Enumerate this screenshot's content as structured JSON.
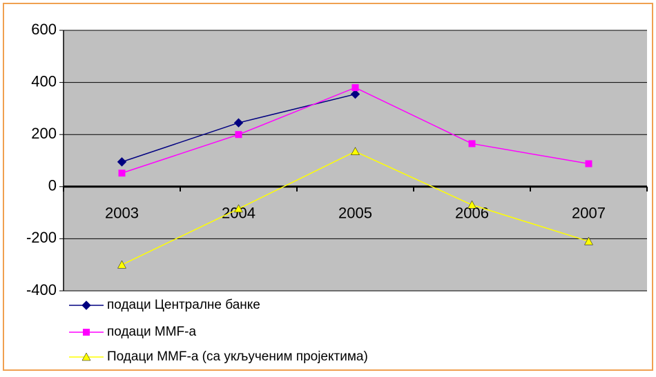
{
  "chart_data": {
    "type": "line",
    "categories": [
      "2003",
      "2004",
      "2005",
      "2006",
      "2007"
    ],
    "series": [
      {
        "name": "подаци Централне банке",
        "color": "#000080",
        "marker": "diamond",
        "values": [
          95,
          245,
          355,
          null,
          null
        ]
      },
      {
        "name": "подаци ММF-а",
        "color": "#ff00ff",
        "marker": "square",
        "values": [
          52,
          200,
          380,
          165,
          88
        ]
      },
      {
        "name": "Подаци ММF-а (са укљученим пројектима)",
        "color": "#ffff00",
        "marker": "triangle",
        "values": [
          -300,
          -85,
          135,
          -70,
          -210
        ]
      }
    ],
    "ylim": [
      -400,
      600
    ],
    "yticks": [
      -400,
      -200,
      0,
      200,
      400,
      600
    ],
    "grid": true,
    "plot_background": "#c0c0c0",
    "legend": "bottom-left"
  }
}
